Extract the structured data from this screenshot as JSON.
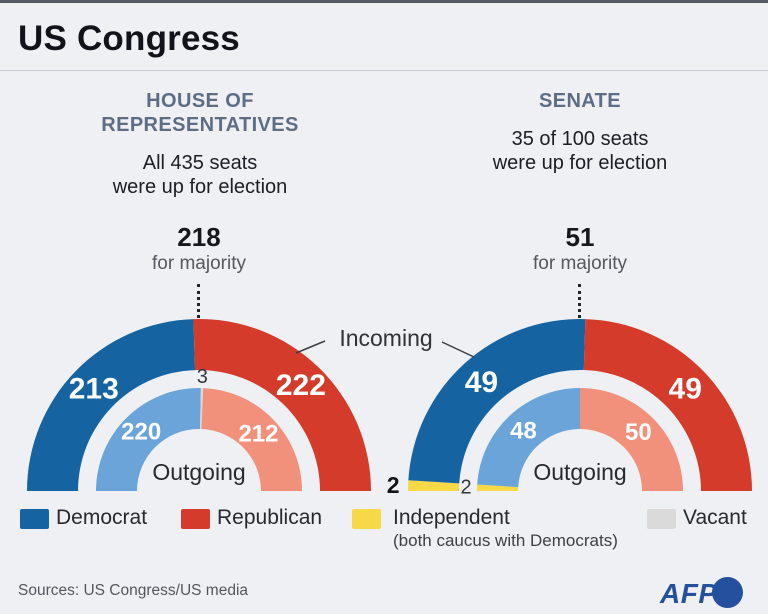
{
  "header": {
    "title": "US Congress"
  },
  "colors": {
    "democrat": "#1663a2",
    "republican": "#d43b2a",
    "democrat_outgoing": "#6ba4d9",
    "republican_outgoing": "#f2917b",
    "independent": "#f7d847",
    "vacant": "#dadada",
    "afp_blue": "#24509e",
    "background": "#eef0f4"
  },
  "house": {
    "heading": "HOUSE OF\nREPRESENTATIVES",
    "subtitle": "All 435 seats\nwere up for election",
    "majority_value": "218",
    "majority_label": "for majority"
  },
  "senate": {
    "heading": "SENATE",
    "subtitle": "35 of 100 seats\nwere up for election",
    "majority_value": "51",
    "majority_label": "for majority"
  },
  "labels": {
    "incoming": "Incoming",
    "outgoing": "Outgoing"
  },
  "legend": [
    {
      "label": "Democrat",
      "color_key": "democrat"
    },
    {
      "label": "Republican",
      "color_key": "republican"
    },
    {
      "label": "Independent",
      "color_key": "independent",
      "note": "(both caucus with Democrats)"
    },
    {
      "label": "Vacant",
      "color_key": "vacant"
    }
  ],
  "footer": {
    "sources": "Sources: US Congress/US media",
    "logo": "AFP"
  },
  "chart_data": [
    {
      "type": "semicircle-donut",
      "title": "House of Representatives",
      "total": 435,
      "majority": 218,
      "rings": [
        {
          "name": "incoming",
          "segments": [
            {
              "party": "Democrat",
              "value": 213,
              "color_key": "democrat",
              "label": "213",
              "label_style": "inside"
            },
            {
              "party": "Republican",
              "value": 222,
              "color_key": "republican",
              "label": "222",
              "label_style": "inside"
            }
          ]
        },
        {
          "name": "outgoing",
          "segments": [
            {
              "party": "Democrat",
              "value": 220,
              "color_key": "democrat_outgoing",
              "label": "220",
              "label_style": "inside"
            },
            {
              "party": "Vacant",
              "value": 3,
              "color_key": "vacant",
              "label": "3",
              "label_style": "gap"
            },
            {
              "party": "Republican",
              "value": 212,
              "color_key": "republican_outgoing",
              "label": "212",
              "label_style": "inside"
            }
          ]
        }
      ]
    },
    {
      "type": "semicircle-donut",
      "title": "Senate",
      "total": 100,
      "majority": 51,
      "rings": [
        {
          "name": "incoming",
          "segments": [
            {
              "party": "Independent",
              "value": 2,
              "color_key": "independent",
              "label": "2",
              "label_style": "outside"
            },
            {
              "party": "Democrat",
              "value": 49,
              "color_key": "democrat",
              "label": "49",
              "label_style": "inside"
            },
            {
              "party": "Republican",
              "value": 49,
              "color_key": "republican",
              "label": "49",
              "label_style": "inside"
            }
          ]
        },
        {
          "name": "outgoing",
          "segments": [
            {
              "party": "Independent",
              "value": 2,
              "color_key": "independent",
              "label": "2",
              "label_style": "gap"
            },
            {
              "party": "Democrat",
              "value": 48,
              "color_key": "democrat_outgoing",
              "label": "48",
              "label_style": "inside"
            },
            {
              "party": "Republican",
              "value": 50,
              "color_key": "republican_outgoing",
              "label": "50",
              "label_style": "inside"
            }
          ]
        }
      ]
    }
  ]
}
